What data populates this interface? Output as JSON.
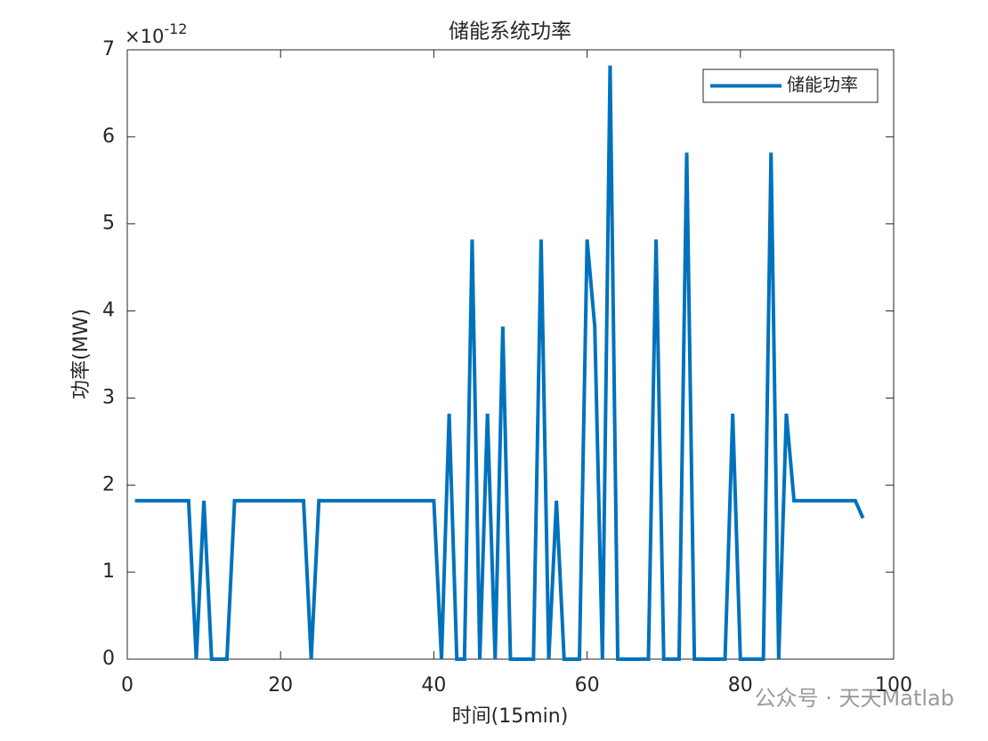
{
  "chart_data": {
    "type": "line",
    "title": "储能系统功率",
    "xlabel": "时间(15min)",
    "ylabel": "功率(MW)",
    "y_multiplier": {
      "base": "×10",
      "exponent": "-12"
    },
    "x": [
      1,
      2,
      3,
      4,
      5,
      6,
      7,
      8,
      9,
      10,
      11,
      12,
      13,
      14,
      15,
      16,
      17,
      18,
      19,
      20,
      21,
      22,
      23,
      24,
      25,
      26,
      27,
      28,
      29,
      30,
      31,
      32,
      33,
      34,
      35,
      36,
      37,
      38,
      39,
      40,
      41,
      42,
      43,
      44,
      45,
      46,
      47,
      48,
      49,
      50,
      51,
      52,
      53,
      54,
      55,
      56,
      57,
      58,
      59,
      60,
      61,
      62,
      63,
      64,
      65,
      66,
      67,
      68,
      69,
      70,
      71,
      72,
      73,
      74,
      75,
      76,
      77,
      78,
      79,
      80,
      81,
      82,
      83,
      84,
      85,
      86,
      87,
      88,
      89,
      90,
      91,
      92,
      93,
      94,
      95,
      96
    ],
    "series": [
      {
        "name": "储能功率",
        "color": "#0072bd",
        "values": [
          1.82,
          1.82,
          1.82,
          1.82,
          1.82,
          1.82,
          1.82,
          1.82,
          0,
          1.82,
          0,
          0,
          0,
          1.82,
          1.82,
          1.82,
          1.82,
          1.82,
          1.82,
          1.82,
          1.82,
          1.82,
          1.82,
          0,
          1.82,
          1.82,
          1.82,
          1.82,
          1.82,
          1.82,
          1.82,
          1.82,
          1.82,
          1.82,
          1.82,
          1.82,
          1.82,
          1.82,
          1.82,
          1.82,
          0,
          2.82,
          0,
          0,
          4.82,
          0,
          2.82,
          0,
          3.82,
          0,
          0,
          0,
          0,
          4.82,
          0,
          1.82,
          0,
          0,
          0,
          4.82,
          3.82,
          0,
          6.82,
          0,
          0,
          0,
          0,
          0,
          4.82,
          0,
          0,
          0,
          5.82,
          0,
          0,
          0,
          0,
          0,
          2.82,
          0,
          0,
          0,
          0,
          5.82,
          0,
          2.82,
          1.82,
          1.82,
          1.82,
          1.82,
          1.82,
          1.82,
          1.82,
          1.82,
          1.82,
          1.62
        ]
      }
    ],
    "xlim": [
      0,
      100
    ],
    "xticks": [
      0,
      20,
      40,
      60,
      80,
      100
    ],
    "ylim": [
      0,
      7
    ],
    "yticks": [
      0,
      1,
      2,
      3,
      4,
      5,
      6,
      7
    ],
    "legend": "upper right",
    "grid": false
  },
  "watermark": "公众号 · 天天Matlab"
}
